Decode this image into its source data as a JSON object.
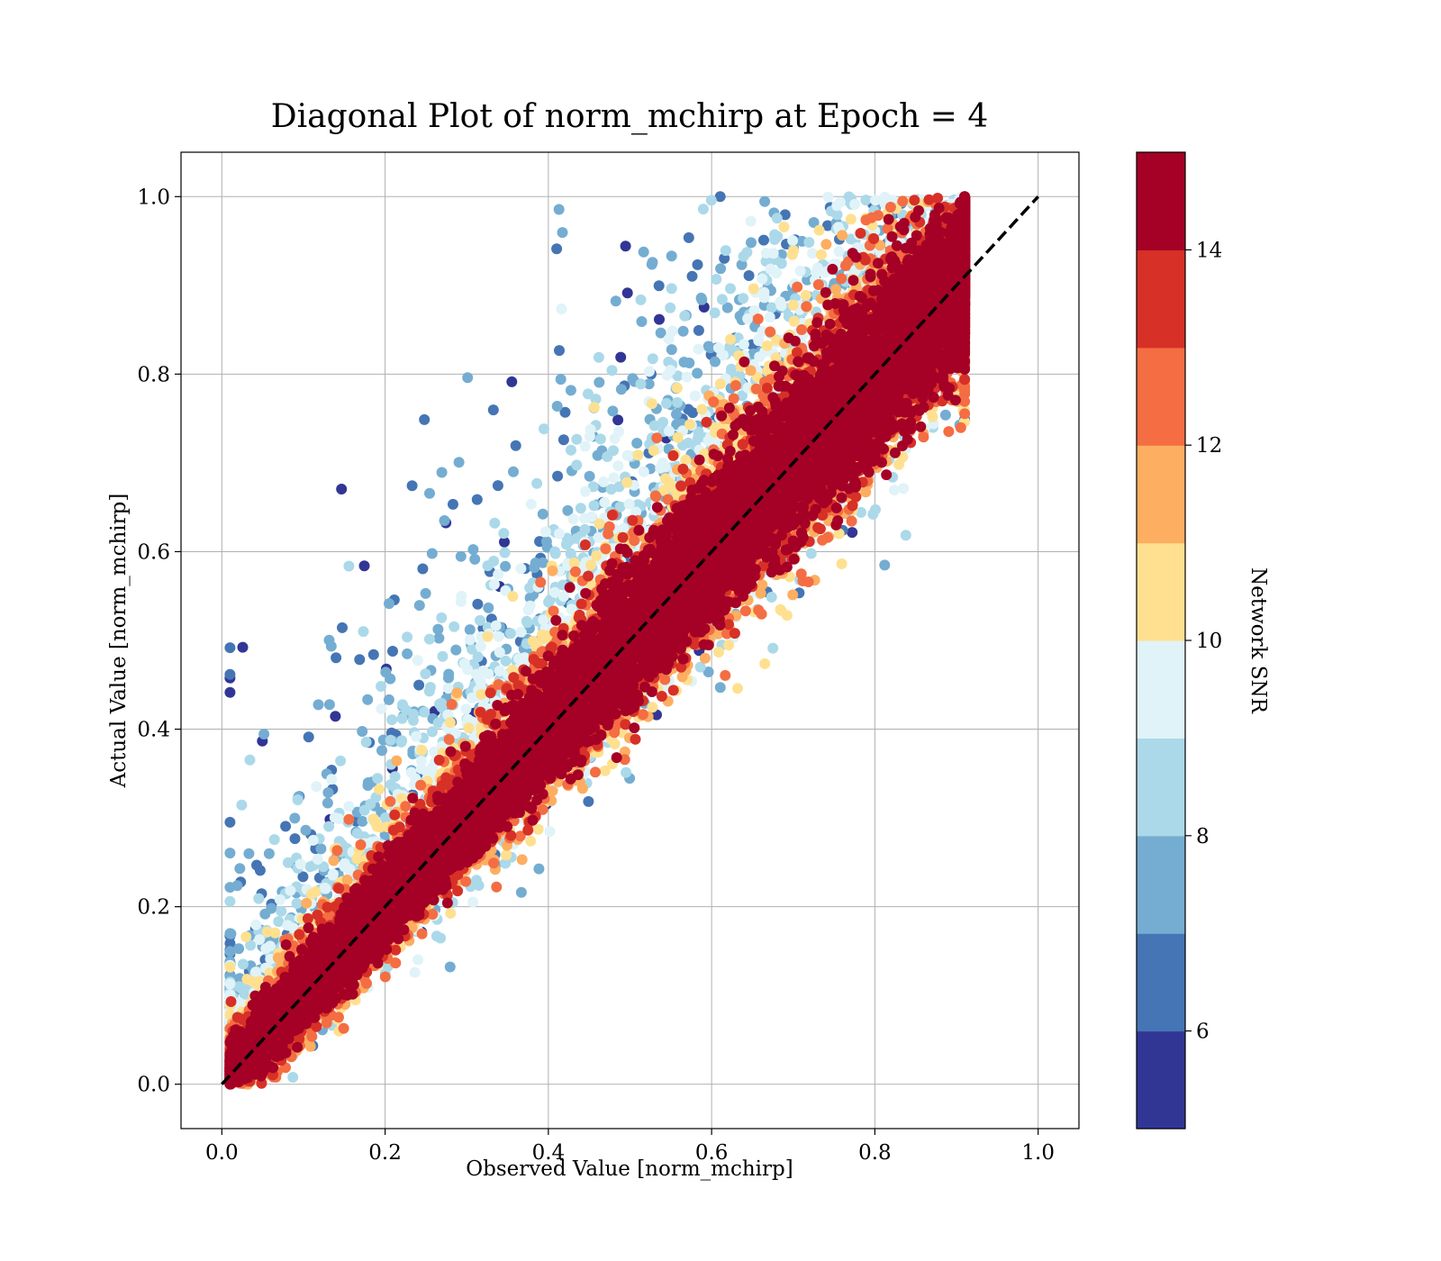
{
  "chart_data": {
    "type": "scatter",
    "title": "Diagonal Plot of norm_mchirp at Epoch = 4",
    "xlabel": "Observed Value [norm_mchirp]",
    "ylabel": "Actual Value [norm_mchirp]",
    "xlim": [
      -0.05,
      1.05
    ],
    "ylim": [
      -0.05,
      1.05
    ],
    "xticks": [
      "0.0",
      "0.2",
      "0.4",
      "0.6",
      "0.8",
      "1.0"
    ],
    "yticks": [
      "0.0",
      "0.2",
      "0.4",
      "0.6",
      "0.8",
      "1.0"
    ],
    "grid": true,
    "reference_line": {
      "x": [
        0.0,
        1.0
      ],
      "y": [
        0.0,
        1.0
      ],
      "style": "dashed",
      "color": "#000000"
    },
    "colorbar": {
      "label": "Network SNR",
      "range": [
        5.0,
        15.0
      ],
      "ticks": [
        "6",
        "8",
        "10",
        "12",
        "14"
      ],
      "tick_values": [
        6,
        8,
        10,
        12,
        14
      ],
      "bin_colors": [
        "#313695",
        "#4575b4",
        "#74add1",
        "#abd9e9",
        "#e0f3f8",
        "#fee090",
        "#fdae61",
        "#f46d43",
        "#d73027",
        "#a50026"
      ]
    },
    "marker_color_scheme": "RdYlBu_r (binned by Network SNR)",
    "approx_point_count": 60000,
    "point_cloud_description": "dense band along y = x, high-SNR points (red) near diagonal, low-SNR points (blue) scattered above diagonal toward low observed values"
  }
}
